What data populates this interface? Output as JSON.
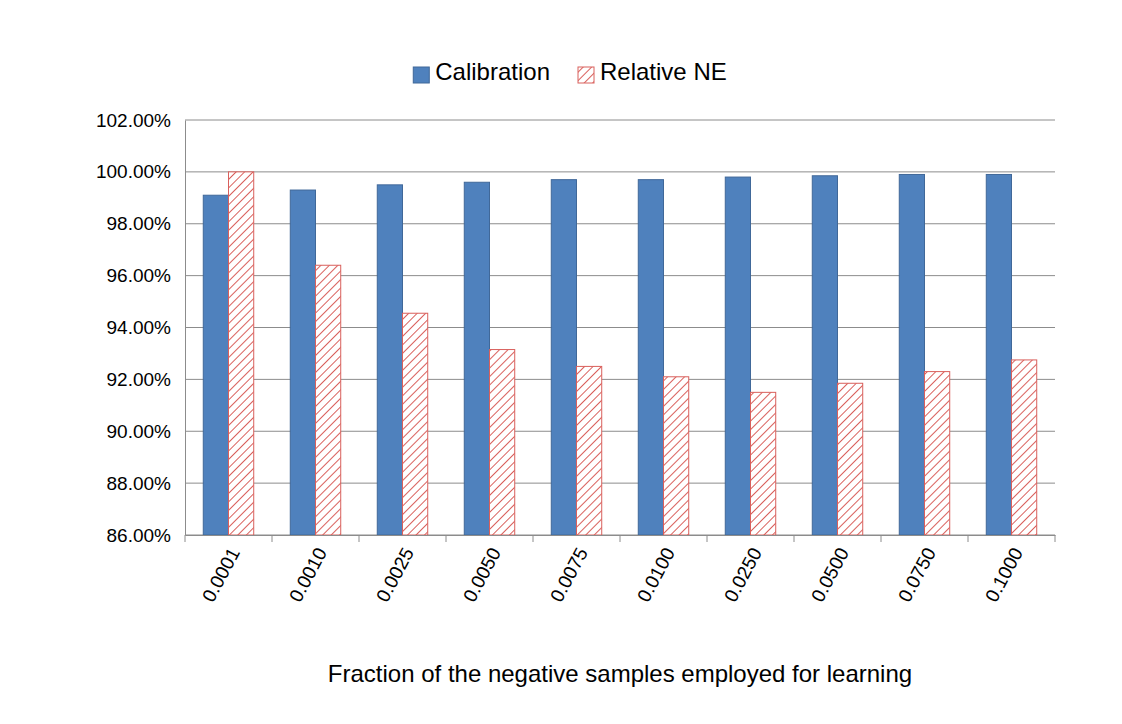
{
  "chart_data": {
    "type": "bar",
    "x_label": "Fraction of the negative samples employed for learning",
    "categories": [
      "0.0001",
      "0.0010",
      "0.0025",
      "0.0050",
      "0.0075",
      "0.0100",
      "0.0250",
      "0.0500",
      "0.0750",
      "0.1000"
    ],
    "series": [
      {
        "name": "Calibration",
        "color": "#4f81bd",
        "values": [
          99.1,
          99.3,
          99.5,
          99.6,
          99.7,
          99.7,
          99.8,
          99.85,
          99.9,
          99.9
        ]
      },
      {
        "name": "Relative NE",
        "color": "#d9605c",
        "values": [
          100.0,
          96.4,
          94.55,
          93.15,
          92.5,
          92.1,
          91.5,
          91.85,
          92.3,
          92.75
        ]
      }
    ],
    "ylim": [
      86,
      102
    ],
    "yticks": [
      {
        "value": 86,
        "label": "86.00%"
      },
      {
        "value": 88,
        "label": "88.00%"
      },
      {
        "value": 90,
        "label": "90.00%"
      },
      {
        "value": 92,
        "label": "92.00%"
      },
      {
        "value": 94,
        "label": "94.00%"
      },
      {
        "value": 96,
        "label": "96.00%"
      },
      {
        "value": 98,
        "label": "98.00%"
      },
      {
        "value": 100,
        "label": "100.00%"
      },
      {
        "value": 102,
        "label": "102.00%"
      }
    ],
    "grid": true,
    "legend": "top"
  }
}
